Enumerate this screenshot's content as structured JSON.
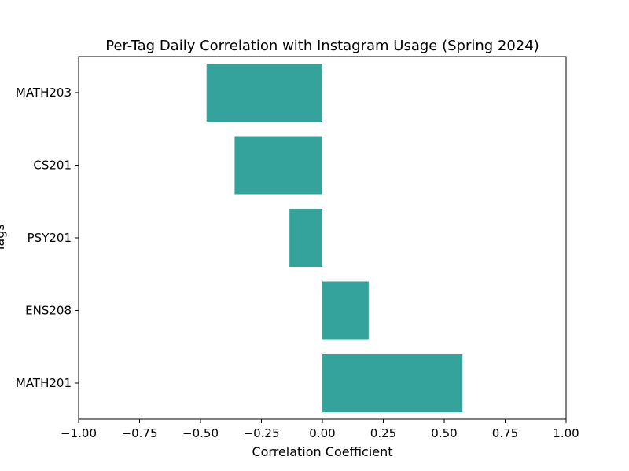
{
  "chart_data": {
    "type": "bar",
    "orientation": "horizontal",
    "title": "Per-Tag Daily Correlation with Instagram Usage (Spring 2024)",
    "xlabel": "Correlation Coefficient",
    "ylabel": "Tags",
    "xlim": [
      -1.0,
      1.0
    ],
    "x_ticks": [
      -1.0,
      -0.75,
      -0.5,
      -0.25,
      0.0,
      0.25,
      0.5,
      0.75,
      1.0
    ],
    "x_tick_labels": [
      "−1.00",
      "−0.75",
      "−0.50",
      "−0.25",
      "0.00",
      "0.25",
      "0.50",
      "0.75",
      "1.00"
    ],
    "categories": [
      "MATH203",
      "CS201",
      "PSY201",
      "ENS208",
      "MATH201"
    ],
    "values": [
      -0.475,
      -0.36,
      -0.135,
      0.19,
      0.575
    ],
    "bar_color": "#33a39b",
    "grid": false,
    "legend": "none"
  }
}
